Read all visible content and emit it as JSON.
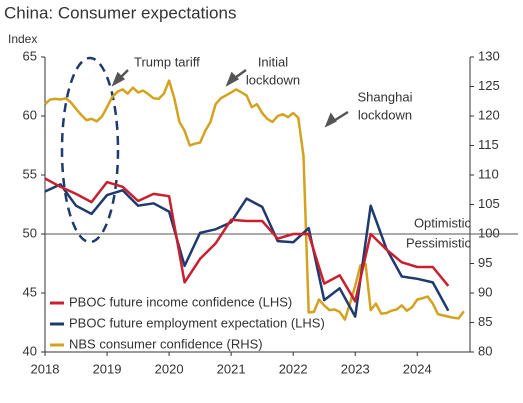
{
  "chart_data": {
    "type": "line",
    "title": "China: Consumer expectations",
    "y_label": "Index",
    "xlim": [
      2018,
      2024.85
    ],
    "xticks": [
      2018,
      2019,
      2020,
      2021,
      2022,
      2023,
      2024
    ],
    "ylim": [
      40,
      65
    ],
    "yticks": [
      40,
      45,
      50,
      55,
      60,
      65
    ],
    "y2lim": [
      80,
      130
    ],
    "y2ticks": [
      80,
      85,
      90,
      95,
      100,
      105,
      110,
      115,
      120,
      125,
      130
    ],
    "reference_line": 50,
    "series": [
      {
        "name": "PBOC future income confidence (LHS)",
        "color": "#c8202f",
        "x": [
          2018,
          2018.25,
          2018.5,
          2018.75,
          2019,
          2019.25,
          2019.5,
          2019.75,
          2020,
          2020.25,
          2020.5,
          2020.75,
          2021,
          2021.25,
          2021.5,
          2021.75,
          2022,
          2022.25,
          2022.5,
          2022.75,
          2023,
          2023.25,
          2023.5,
          2023.75,
          2024,
          2024.25,
          2024.5
        ],
        "values": [
          54.7,
          54.0,
          53.4,
          52.7,
          54.4,
          54.0,
          52.8,
          53.4,
          53.2,
          45.9,
          47.9,
          49.2,
          51.2,
          51.1,
          51.1,
          49.6,
          50.0,
          50.0,
          45.8,
          46.5,
          44.3,
          50.0,
          48.7,
          47.6,
          47.2,
          47.2,
          45.6
        ]
      },
      {
        "name": "PBOC future employment expectation (LHS)",
        "color": "#1f3a6e",
        "x": [
          2018,
          2018.25,
          2018.5,
          2018.75,
          2019,
          2019.25,
          2019.5,
          2019.75,
          2020,
          2020.25,
          2020.5,
          2020.75,
          2021,
          2021.25,
          2021.5,
          2021.75,
          2022,
          2022.25,
          2022.5,
          2022.75,
          2023,
          2023.25,
          2023.5,
          2023.75,
          2024,
          2024.25,
          2024.5
        ],
        "values": [
          53.6,
          54.2,
          52.4,
          51.7,
          53.3,
          53.7,
          52.4,
          52.6,
          51.9,
          47.3,
          50.1,
          50.4,
          51.0,
          53.0,
          52.3,
          49.4,
          49.3,
          50.5,
          44.4,
          45.4,
          43.0,
          52.4,
          48.8,
          46.4,
          46.2,
          45.9,
          43.5
        ]
      },
      {
        "name": "NBS consumer confidence (RHS)",
        "color": "#d4a21f",
        "axis": "y2",
        "x": [
          2018,
          2018.0833,
          2018.1667,
          2018.25,
          2018.3333,
          2018.4167,
          2018.5,
          2018.5833,
          2018.6667,
          2018.75,
          2018.8333,
          2018.9167,
          2019,
          2019.0833,
          2019.1667,
          2019.25,
          2019.3333,
          2019.4167,
          2019.5,
          2019.5833,
          2019.6667,
          2019.75,
          2019.8333,
          2019.9167,
          2020,
          2020.0833,
          2020.1667,
          2020.25,
          2020.3333,
          2020.4167,
          2020.5,
          2020.5833,
          2020.6667,
          2020.75,
          2020.8333,
          2020.9167,
          2021,
          2021.0833,
          2021.1667,
          2021.25,
          2021.3333,
          2021.4167,
          2021.5,
          2021.5833,
          2021.6667,
          2021.75,
          2021.8333,
          2021.9167,
          2022,
          2022.0833,
          2022.1667,
          2022.25,
          2022.3333,
          2022.4167,
          2022.5,
          2022.5833,
          2022.6667,
          2022.75,
          2022.8333,
          2022.9167,
          2023,
          2023.0833,
          2023.1667,
          2023.25,
          2023.3333,
          2023.4167,
          2023.5,
          2023.5833,
          2023.6667,
          2023.75,
          2023.8333,
          2023.9167,
          2024,
          2024.0833,
          2024.1667,
          2024.25,
          2024.3333,
          2024.4167,
          2024.5,
          2024.5833,
          2024.6667,
          2024.75
        ],
        "values": [
          122,
          122.8,
          122.9,
          122.8,
          123,
          122.3,
          121.2,
          120.2,
          119.3,
          119.5,
          119.1,
          119.9,
          121.5,
          123.2,
          124.1,
          124.5,
          123.8,
          124.8,
          124,
          124.3,
          123.7,
          123,
          122.9,
          123.8,
          126,
          123,
          119,
          117.5,
          115,
          115.3,
          115.5,
          117.5,
          119,
          122,
          123,
          123.5,
          124,
          124.5,
          124,
          123.5,
          121.5,
          122,
          120.5,
          119.5,
          119,
          120,
          120.3,
          119.8,
          120.5,
          119.7,
          113.2,
          86.7,
          86.8,
          88.9,
          87.9,
          87.1,
          87.2,
          86.8,
          85.5,
          88.3,
          91.2,
          94.7,
          94.9,
          87.1,
          88.2,
          86.5,
          86.6,
          87,
          87.2,
          87.9,
          87,
          87.6,
          88.9,
          89.1,
          89.4,
          88.2,
          86.4,
          86.2,
          86,
          85.8,
          85.7,
          86.9
        ]
      }
    ],
    "annotations": [
      {
        "lines": [
          "Trump tariff"
        ]
      },
      {
        "lines": [
          "Initial",
          "lockdown"
        ]
      },
      {
        "lines": [
          "Shanghai",
          "lockdown"
        ]
      },
      {
        "lines": [
          "Optimistic"
        ]
      },
      {
        "lines": [
          "Pessimistic"
        ]
      }
    ]
  }
}
